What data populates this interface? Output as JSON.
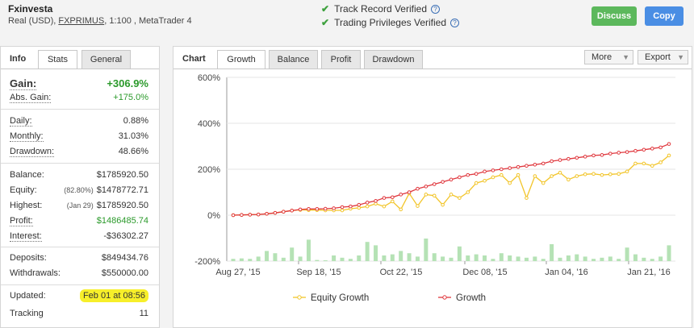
{
  "account": {
    "name": "Fxinvesta",
    "type": "Real (USD),",
    "broker": "FXPRIMUS",
    "details": ", 1:100 , MetaTrader 4"
  },
  "verification": {
    "track_record": "Track Record Verified",
    "trading_privileges": "Trading Privileges Verified"
  },
  "actions": {
    "discuss": "Discuss",
    "copy": "Copy"
  },
  "left_tabs": {
    "title": "Info",
    "stats": "Stats",
    "general": "General"
  },
  "stats": {
    "gain": {
      "label": "Gain:",
      "value": "+306.9%"
    },
    "abs_gain": {
      "label": "Abs. Gain:",
      "value": "+175.0%"
    },
    "daily": {
      "label": "Daily:",
      "value": "0.88%"
    },
    "monthly": {
      "label": "Monthly:",
      "value": "31.03%"
    },
    "drawdown": {
      "label": "Drawdown:",
      "value": "48.66%"
    },
    "balance": {
      "label": "Balance:",
      "value": "$1785920.50"
    },
    "equity": {
      "label": "Equity:",
      "pct": "(82.80%)",
      "value": "$1478772.71"
    },
    "highest": {
      "label": "Highest:",
      "pct": "(Jan 29)",
      "value": "$1785920.50"
    },
    "profit": {
      "label": "Profit:",
      "value": "$1486485.74"
    },
    "interest": {
      "label": "Interest:",
      "value": "-$36302.27"
    },
    "deposits": {
      "label": "Deposits:",
      "value": "$849434.76"
    },
    "withdrawals": {
      "label": "Withdrawals:",
      "value": "$550000.00"
    },
    "updated": {
      "label": "Updated:",
      "value": "Feb 01 at 08:56"
    },
    "tracking": {
      "label": "Tracking",
      "value": "11"
    }
  },
  "right_tabs": {
    "title": "Chart",
    "growth": "Growth",
    "balance": "Balance",
    "profit": "Profit",
    "drawdown": "Drawdown",
    "more": "More",
    "export": "Export"
  },
  "chart_data": {
    "type": "line",
    "y_ticks": [
      "600%",
      "400%",
      "200%",
      "0%",
      "-200%"
    ],
    "ylim": [
      -200,
      600
    ],
    "x_ticks": [
      "Aug 27, '15",
      "Sep 18, '15",
      "Oct 22, '15",
      "Dec 08, '15",
      "Jan 04, '16",
      "Jan 21, '16"
    ],
    "colors": {
      "growth": "#e0383e",
      "equity": "#f2c52a",
      "bars": "#b5e2b5"
    },
    "series": [
      {
        "name": "Equity Growth",
        "values": [
          0,
          1,
          2,
          3,
          6,
          10,
          15,
          20,
          23,
          22,
          22,
          21,
          21,
          21,
          28,
          32,
          38,
          50,
          38,
          60,
          25,
          95,
          40,
          90,
          85,
          45,
          90,
          75,
          100,
          140,
          150,
          165,
          175,
          140,
          175,
          75,
          170,
          140,
          170,
          185,
          155,
          170,
          178,
          180,
          175,
          178,
          180,
          190,
          225,
          225,
          215,
          230,
          260
        ]
      },
      {
        "name": "Growth",
        "values": [
          0,
          1,
          2,
          3,
          6,
          10,
          15,
          20,
          25,
          27,
          27,
          28,
          30,
          35,
          38,
          45,
          55,
          62,
          75,
          78,
          90,
          100,
          115,
          125,
          135,
          145,
          155,
          165,
          175,
          180,
          190,
          195,
          200,
          205,
          210,
          215,
          220,
          225,
          235,
          240,
          245,
          250,
          255,
          260,
          262,
          268,
          272,
          275,
          280,
          285,
          290,
          295,
          310
        ]
      }
    ],
    "bars": [
      0.1,
      0.12,
      0.1,
      0.2,
      0.45,
      0.35,
      0.15,
      0.6,
      0.2,
      0.95,
      0.05,
      0.02,
      0.25,
      0.15,
      0.1,
      0.25,
      0.85,
      0.7,
      0.25,
      0.3,
      0.45,
      0.35,
      0.2,
      1.0,
      0.35,
      0.2,
      0.15,
      0.65,
      0.25,
      0.3,
      0.25,
      0.1,
      0.35,
      0.25,
      0.2,
      0.15,
      0.2,
      0.1,
      0.75,
      0.15,
      0.25,
      0.3,
      0.2,
      0.1,
      0.15,
      0.2,
      0.1,
      0.6,
      0.3,
      0.15,
      0.1,
      0.2,
      0.7
    ]
  }
}
